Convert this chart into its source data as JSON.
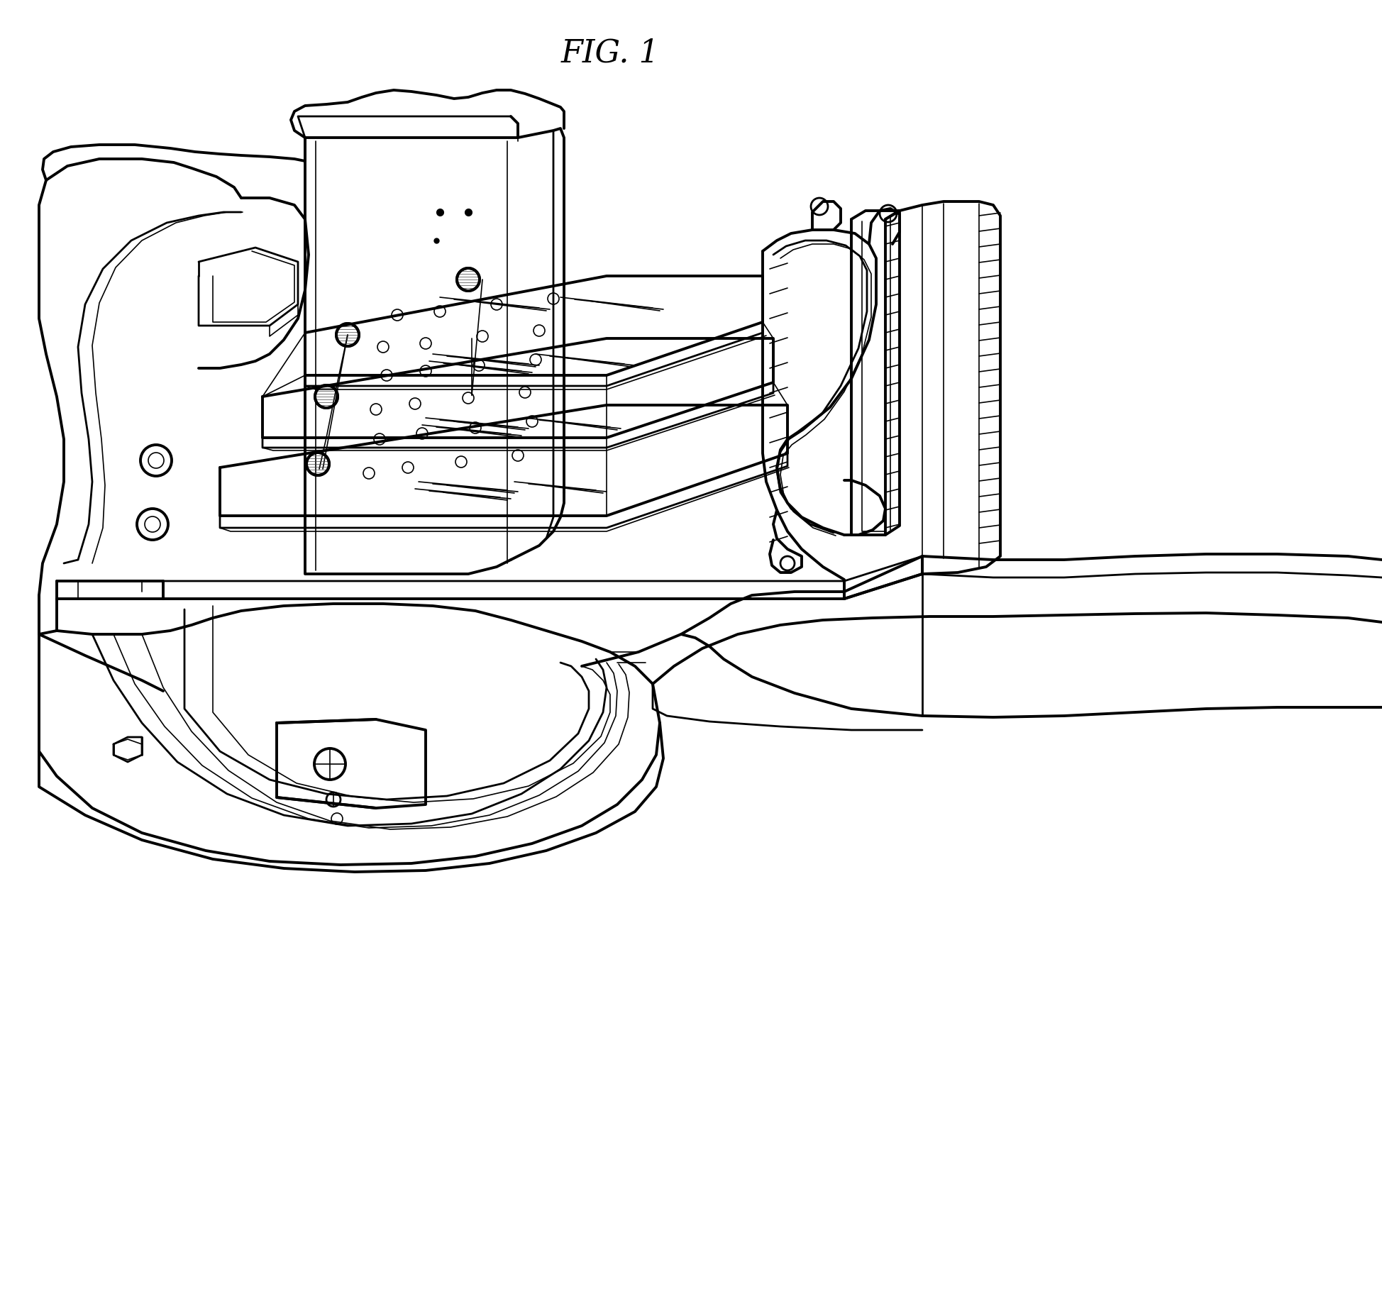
{
  "title": "FIG. 1",
  "title_fontsize": 32,
  "background_color": "#ffffff",
  "line_color": "#000000",
  "lw_thin": 1.2,
  "lw_med": 2.0,
  "lw_thick": 2.8
}
